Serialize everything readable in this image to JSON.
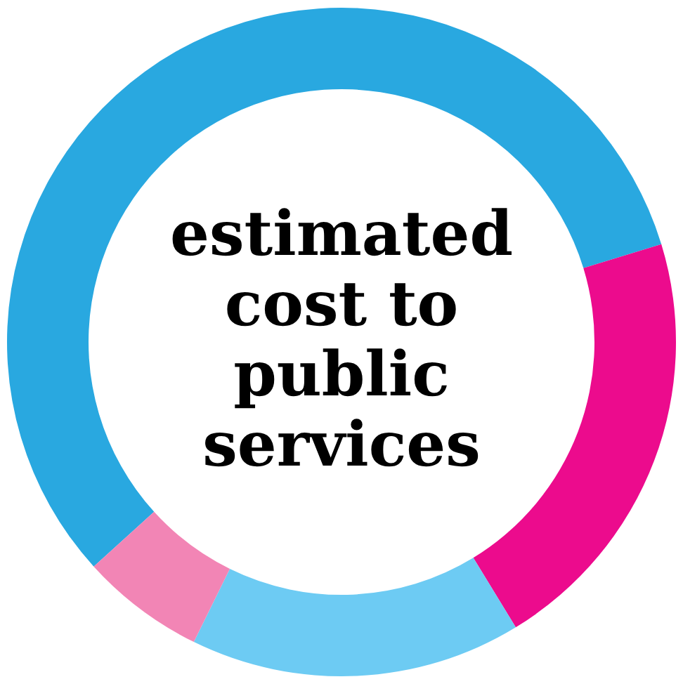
{
  "chart_data": {
    "type": "donut",
    "title": "estimated cost to public services",
    "categories": [
      null,
      null,
      null,
      null
    ],
    "values": [
      57,
      21,
      16,
      6
    ],
    "colors": [
      "#29a8e0",
      "#ec0b8d",
      "#6dcbf3",
      "#f285b5"
    ],
    "legend": false
  }
}
